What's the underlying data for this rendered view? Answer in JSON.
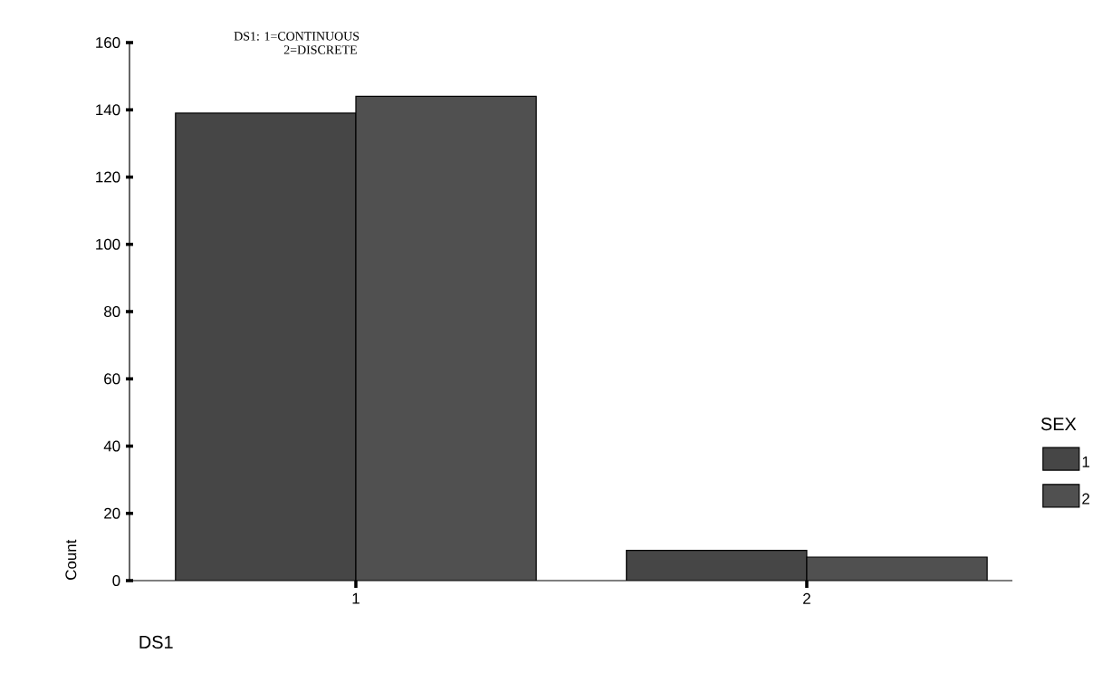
{
  "chart_data": {
    "type": "bar",
    "categories": [
      "1",
      "2"
    ],
    "series": [
      {
        "name": "1",
        "color": "#464646",
        "values": [
          139,
          9
        ]
      },
      {
        "name": "2",
        "color": "#505050",
        "values": [
          144,
          7
        ]
      }
    ],
    "ylim": [
      0,
      160
    ],
    "yticks": [
      0,
      20,
      40,
      60,
      80,
      100,
      120,
      140,
      160
    ],
    "xlabel": "DS1",
    "ylabel": "Count",
    "legend_title": "SEX",
    "legend": "right",
    "annotations": [
      "DS1:   1=CONTINUOUS",
      "2=DISCRETE"
    ]
  }
}
